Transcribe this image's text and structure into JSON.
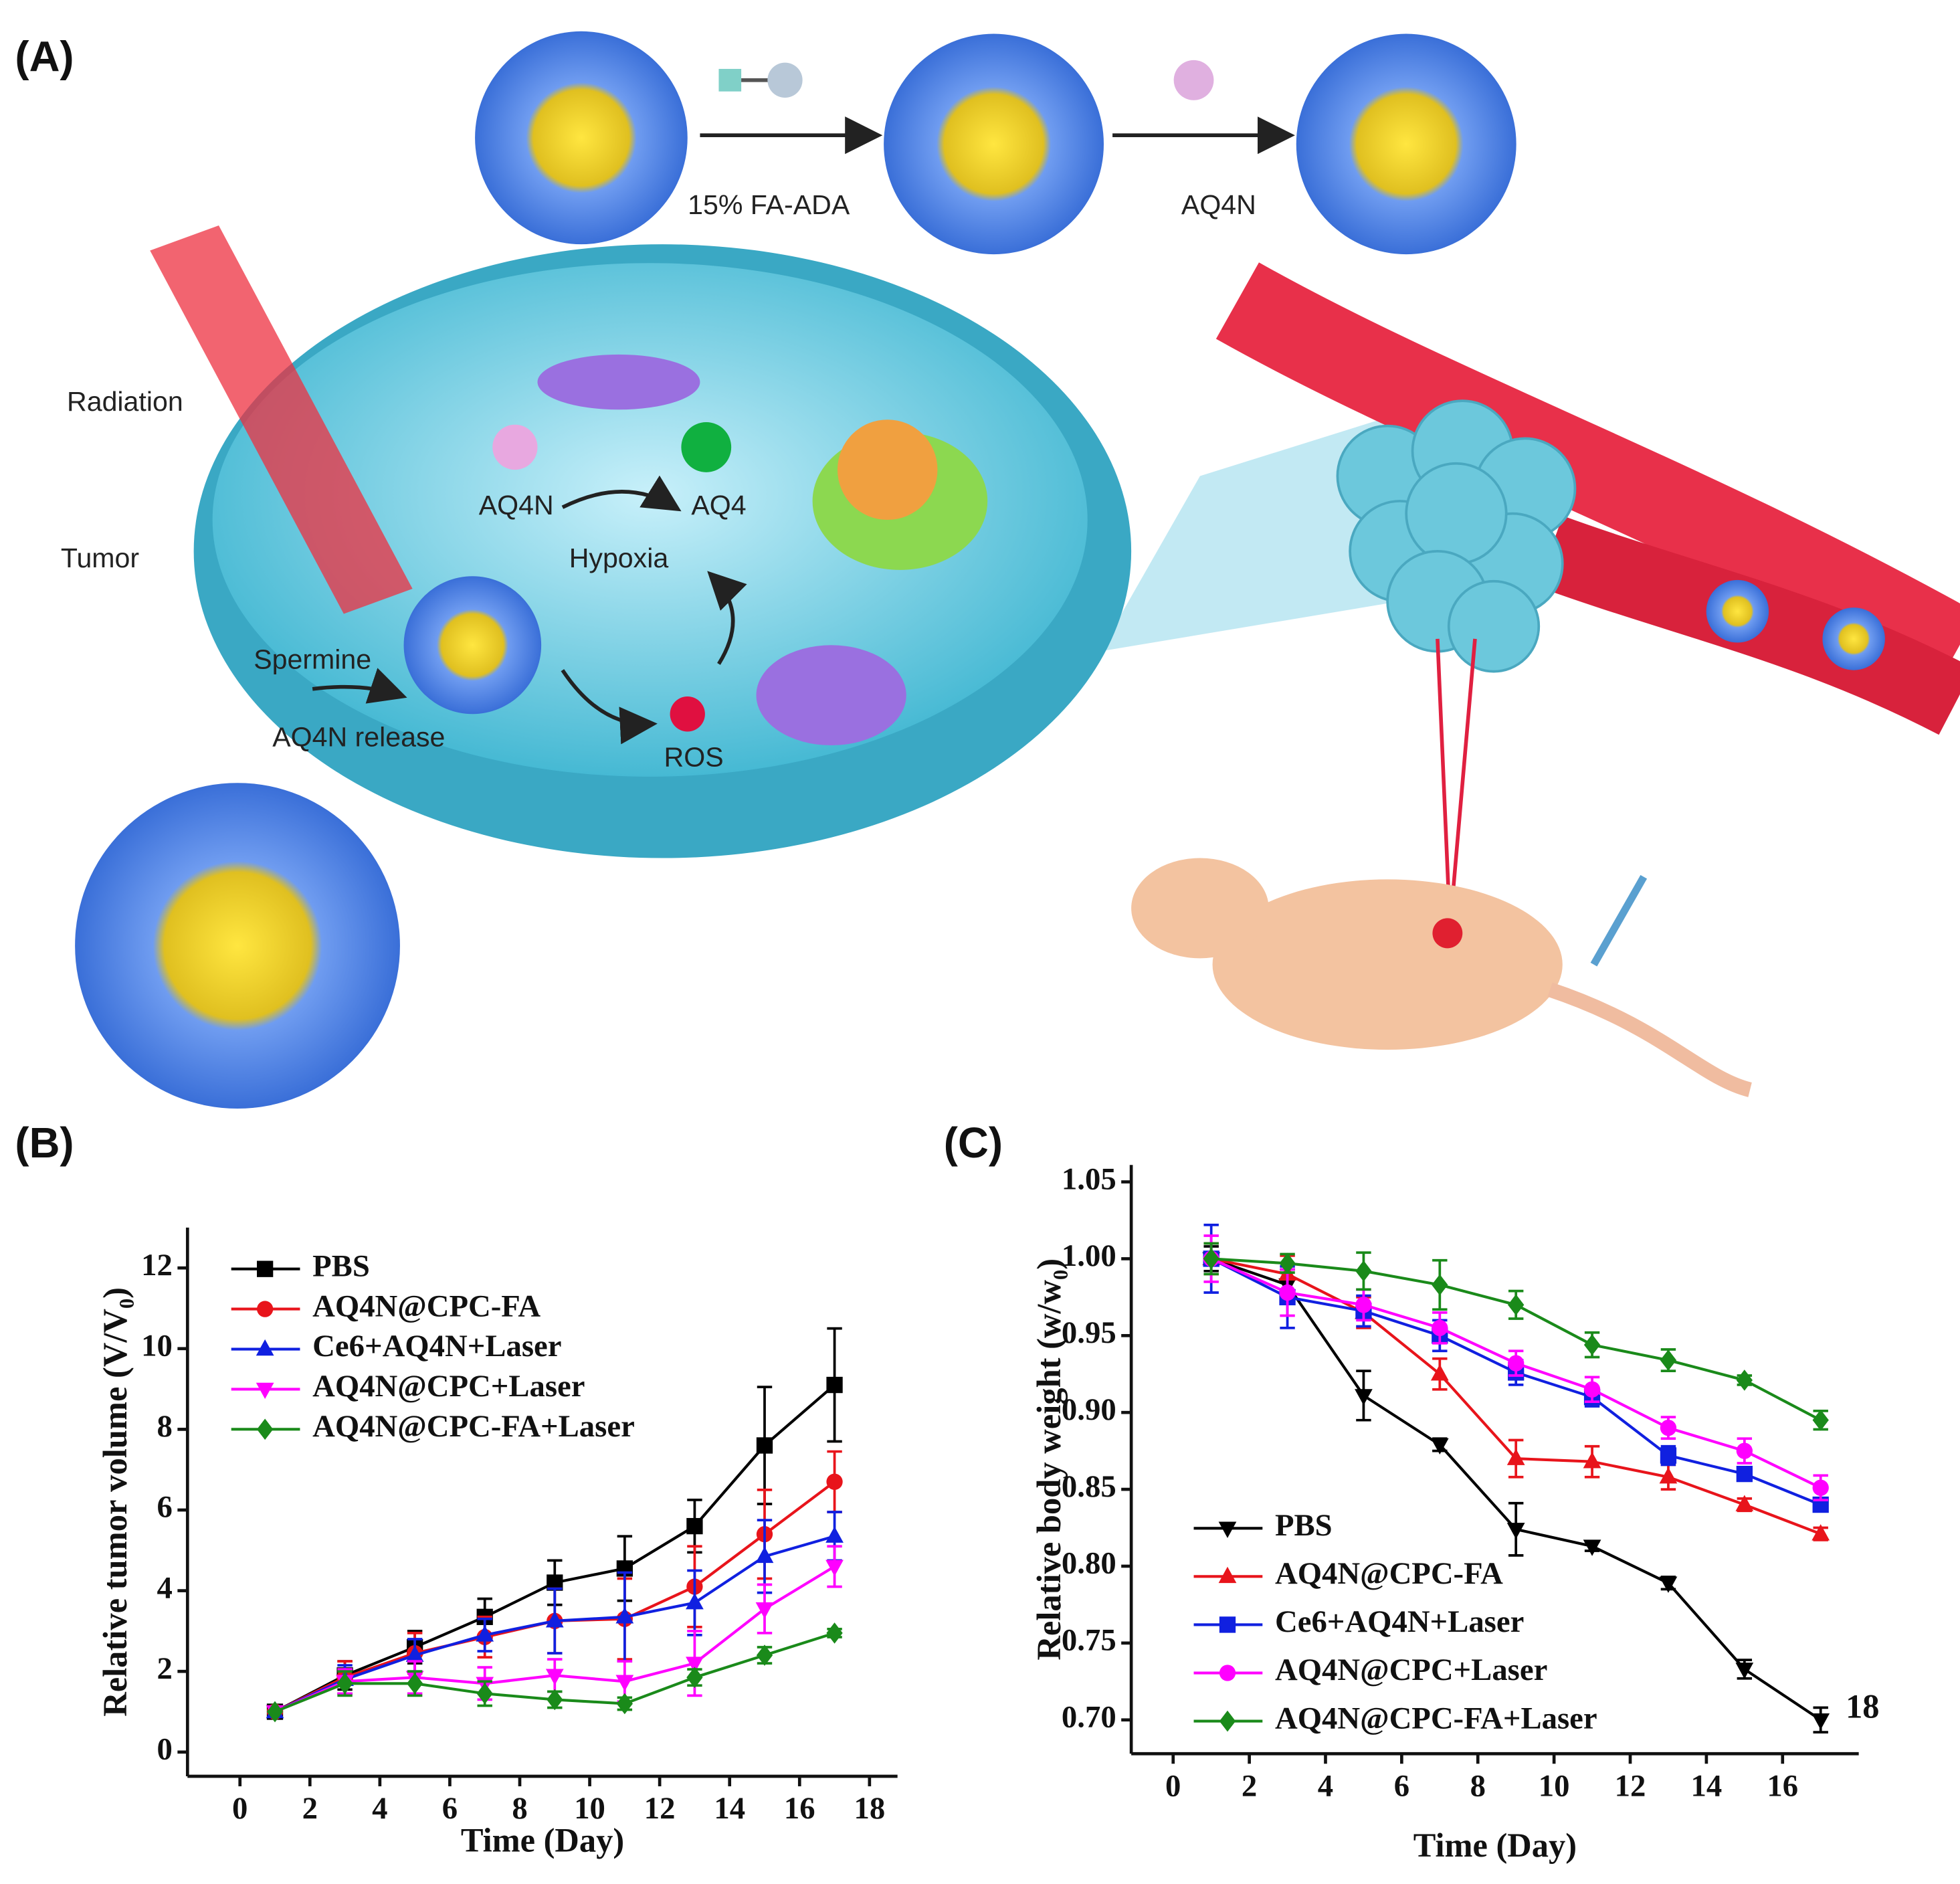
{
  "illustration": {
    "panel_label": "(A)",
    "labels": [
      "15% FA-ADA",
      "AQ4N",
      "Radiation",
      "Tumor",
      "AQ4N",
      "AQ4",
      "Hypoxia",
      "Spermine",
      "AQ4N release",
      "ROS"
    ]
  },
  "chart_data": [
    {
      "type": "line",
      "panel_label": "(B)",
      "xlabel": "Time (Day)",
      "ylabel": "Relative tumor volume (V/V₀)",
      "xlim": [
        -1.5,
        18.8
      ],
      "ylim": [
        -0.6,
        13
      ],
      "xticks": [
        0,
        2,
        4,
        6,
        8,
        10,
        12,
        14,
        16,
        18
      ],
      "yticks": [
        0,
        2,
        4,
        6,
        8,
        10,
        12
      ],
      "legend": "upper left",
      "x": [
        1,
        3,
        5,
        7,
        9,
        11,
        13,
        15,
        17
      ],
      "series": [
        {
          "name": "PBS",
          "color": "#000000",
          "marker": "square",
          "values": [
            1,
            1.9,
            2.6,
            3.35,
            4.2,
            4.55,
            5.6,
            7.6,
            9.1
          ],
          "errors": [
            0,
            0.35,
            0.4,
            0.45,
            0.55,
            0.8,
            0.65,
            1.45,
            1.4
          ]
        },
        {
          "name": "AQ4N@CPC-FA",
          "color": "#e8141b",
          "marker": "circle",
          "values": [
            1,
            1.85,
            2.45,
            2.85,
            3.25,
            3.3,
            4.1,
            5.4,
            6.7
          ],
          "errors": [
            0,
            0.4,
            0.5,
            0.5,
            0.8,
            1.0,
            1.0,
            1.1,
            0.75
          ]
        },
        {
          "name": "Ce6+AQ4N+Laser",
          "color": "#1020e0",
          "marker": "triangle-up",
          "values": [
            1,
            1.8,
            2.4,
            2.9,
            3.25,
            3.35,
            3.7,
            4.85,
            5.35
          ],
          "errors": [
            0,
            0.35,
            0.4,
            0.4,
            0.8,
            1.1,
            0.8,
            0.9,
            0.6
          ]
        },
        {
          "name": "AQ4N@CPC+Laser",
          "color": "#ff00ff",
          "marker": "triangle-down",
          "values": [
            1,
            1.75,
            1.85,
            1.7,
            1.9,
            1.75,
            2.2,
            3.55,
            4.6
          ],
          "errors": [
            0,
            0.3,
            0.4,
            0.4,
            0.4,
            0.5,
            0.8,
            0.6,
            0.5
          ]
        },
        {
          "name": "AQ4N@CPC-FA+Laser",
          "color": "#1a8a1a",
          "marker": "diamond",
          "values": [
            1,
            1.7,
            1.7,
            1.45,
            1.3,
            1.2,
            1.85,
            2.4,
            2.95
          ],
          "errors": [
            0,
            0.3,
            0.3,
            0.3,
            0.2,
            0.15,
            0.2,
            0.2,
            0.1
          ]
        }
      ]
    },
    {
      "type": "line",
      "panel_label": "(C)",
      "xlabel": "Time (Day)",
      "ylabel": "Relative body weight (w/w₀)",
      "xlim": [
        -1.1,
        18
      ],
      "ylim": [
        0.678,
        1.061
      ],
      "xticks": [
        0,
        2,
        4,
        6,
        8,
        10,
        12,
        14,
        16
      ],
      "yticks": [
        {
          "value": 0.7,
          "label": "0.70"
        },
        0.75,
        {
          "value": 0.8,
          "label": "0.80"
        },
        0.85,
        {
          "value": 0.9,
          "label": "0.90"
        },
        0.95,
        {
          "value": 1.0,
          "label": "1.00"
        },
        1.05
      ],
      "legend": "lower left",
      "annotation": "18",
      "x": [
        1,
        3,
        5,
        7,
        9,
        11,
        13,
        15,
        17
      ],
      "series": [
        {
          "name": "PBS",
          "color": "#000000",
          "marker": "triangle-down",
          "values": [
            1.0,
            0.983,
            0.911,
            0.879,
            0.824,
            0.813,
            0.789,
            0.733,
            0.7
          ],
          "errors": [
            0.008,
            0.01,
            0.016,
            0.004,
            0.017,
            0.003,
            0.004,
            0.006,
            0.008
          ]
        },
        {
          "name": "AQ4N@CPC-FA",
          "color": "#e8141b",
          "marker": "triangle-up",
          "values": [
            1.0,
            0.99,
            0.965,
            0.925,
            0.87,
            0.868,
            0.858,
            0.84,
            0.821
          ],
          "errors": [
            0.01,
            0.012,
            0.01,
            0.01,
            0.012,
            0.01,
            0.008,
            0.004,
            0.004
          ]
        },
        {
          "name": "Ce6+AQ4N+Laser",
          "color": "#1020e0",
          "marker": "square",
          "values": [
            1.0,
            0.975,
            0.966,
            0.95,
            0.926,
            0.91,
            0.872,
            0.86,
            0.84
          ],
          "errors": [
            0.022,
            0.02,
            0.01,
            0.01,
            0.008,
            0.006,
            0.006,
            0.004,
            0.004
          ]
        },
        {
          "name": "AQ4N@CPC+Laser",
          "color": "#ff00ff",
          "marker": "circle",
          "values": [
            1.0,
            0.978,
            0.97,
            0.955,
            0.932,
            0.915,
            0.89,
            0.875,
            0.851
          ],
          "errors": [
            0.015,
            0.015,
            0.01,
            0.01,
            0.008,
            0.008,
            0.007,
            0.008,
            0.008
          ]
        },
        {
          "name": "AQ4N@CPC-FA+Laser",
          "color": "#1a8a1a",
          "marker": "diamond",
          "values": [
            1.0,
            0.997,
            0.992,
            0.983,
            0.97,
            0.944,
            0.934,
            0.921,
            0.895
          ],
          "errors": [
            0.01,
            0.006,
            0.012,
            0.016,
            0.009,
            0.008,
            0.007,
            0.003,
            0.006
          ]
        }
      ]
    }
  ]
}
